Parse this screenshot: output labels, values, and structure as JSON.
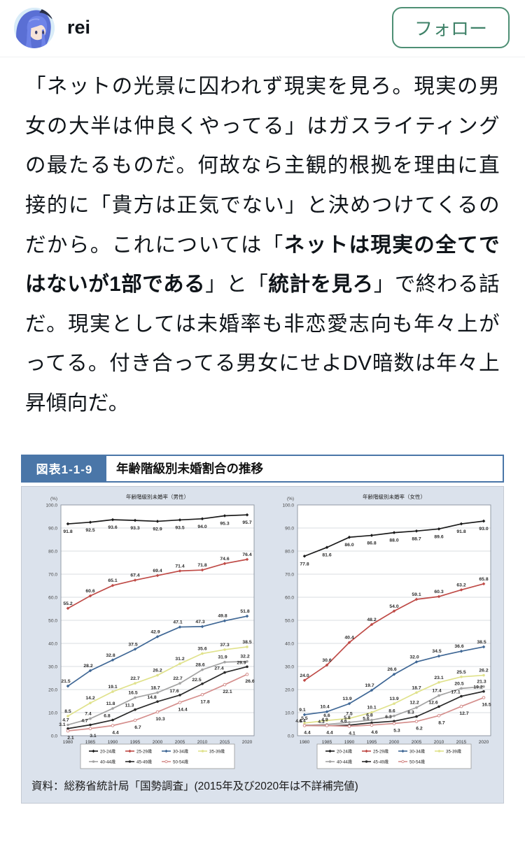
{
  "header": {
    "username": "rei",
    "follow_label": "フォロー",
    "accent_green": "#3f8268"
  },
  "post": {
    "segments": [
      {
        "text": "「ネットの光景に囚われず現実を見ろ。現実の男女の大半は仲良くやってる」はガスライティングの最たるものだ。何故なら主観的根拠を理由に直接的に「貴方は正気でない」と決めつけてくるのだから。これについては「",
        "bold": false
      },
      {
        "text": "ネットは現実の全てではないが1部である",
        "bold": true
      },
      {
        "text": "」と「",
        "bold": false
      },
      {
        "text": "統計を見ろ",
        "bold": true
      },
      {
        "text": "」で終わる話だ。現実としては未婚率も非恋愛志向も年々上がってる。付き合ってる男女にせよDV暗数は年々上昇傾向だ。",
        "bold": false
      }
    ]
  },
  "figure": {
    "label": "図表1-1-9",
    "title": "年齢階級別未婚割合の推移",
    "source": "資料：総務省統計局「国勢調査」(2015年及び2020年は不詳補完値)",
    "header_blue": "#4a76a8",
    "panel_bg": "#dbe2ec"
  },
  "chart_data": [
    {
      "type": "line",
      "title": "年齢階級別未婚率（男性）",
      "ylabel": "(%)",
      "ylim": [
        0,
        100
      ],
      "ytick_step": 10,
      "grid": true,
      "legend_position": "bottom",
      "categories": [
        "1980",
        "1985",
        "1990",
        "1995",
        "2000",
        "2005",
        "2010",
        "2015",
        "2020"
      ],
      "series": [
        {
          "name": "20-24歳",
          "color": "#1a1a1a",
          "values": [
            91.8,
            92.5,
            93.6,
            93.3,
            92.9,
            93.5,
            94.0,
            95.3,
            95.7
          ]
        },
        {
          "name": "25-29歳",
          "color": "#bf4b47",
          "values": [
            55.2,
            60.6,
            65.1,
            67.4,
            69.4,
            71.4,
            71.8,
            74.6,
            76.4
          ]
        },
        {
          "name": "30-34歳",
          "color": "#3f6795",
          "values": [
            21.5,
            28.2,
            32.8,
            37.5,
            42.9,
            47.1,
            47.3,
            49.8,
            51.8
          ]
        },
        {
          "name": "35-39歳",
          "color": "#e0e28c",
          "values": [
            8.5,
            14.2,
            19.1,
            22.7,
            26.2,
            31.2,
            35.6,
            37.3,
            38.5
          ]
        },
        {
          "name": "40-44歳",
          "color": "#a3a3a3",
          "values": [
            4.7,
            7.4,
            11.8,
            16.5,
            18.7,
            22.7,
            28.6,
            31.9,
            32.2
          ]
        },
        {
          "name": "45-49歳",
          "color": "#2b2b2b",
          "values": [
            3.1,
            4.7,
            6.8,
            11.3,
            14.8,
            17.6,
            22.5,
            27.4,
            29.9
          ]
        },
        {
          "name": "50-54歳",
          "color": "#d58f8d",
          "values": [
            2.1,
            3.1,
            4.4,
            6.7,
            10.3,
            14.4,
            17.8,
            22.1,
            26.6
          ]
        }
      ]
    },
    {
      "type": "line",
      "title": "年齢階級別未婚率（女性）",
      "ylabel": "(%)",
      "ylim": [
        0,
        100
      ],
      "ytick_step": 10,
      "grid": true,
      "legend_position": "bottom",
      "categories": [
        "1980",
        "1985",
        "1990",
        "1995",
        "2000",
        "2005",
        "2010",
        "2015",
        "2020"
      ],
      "series": [
        {
          "name": "20-24歳",
          "color": "#1a1a1a",
          "values": [
            77.8,
            81.6,
            86.0,
            86.8,
            88.0,
            88.7,
            89.6,
            91.8,
            93.0
          ]
        },
        {
          "name": "25-29歳",
          "color": "#bf4b47",
          "values": [
            24.0,
            30.6,
            40.4,
            48.2,
            54.0,
            59.1,
            60.3,
            63.2,
            65.8
          ]
        },
        {
          "name": "30-34歳",
          "color": "#3f6795",
          "values": [
            9.1,
            10.4,
            13.9,
            19.7,
            26.6,
            32.0,
            34.5,
            36.6,
            38.5
          ]
        },
        {
          "name": "35-39歳",
          "color": "#e0e28c",
          "values": [
            5.5,
            6.6,
            7.5,
            10.1,
            13.9,
            18.7,
            23.1,
            25.5,
            26.2
          ]
        },
        {
          "name": "40-44歳",
          "color": "#a3a3a3",
          "values": [
            4.4,
            4.9,
            5.8,
            6.8,
            8.6,
            12.2,
            17.4,
            20.5,
            21.3
          ]
        },
        {
          "name": "45-49歳",
          "color": "#2b2b2b",
          "values": [
            4.5,
            4.3,
            4.6,
            5.6,
            6.3,
            8.3,
            12.6,
            17.1,
            19.2
          ]
        },
        {
          "name": "50-54歳",
          "color": "#d58f8d",
          "values": [
            4.4,
            4.4,
            4.1,
            4.6,
            5.3,
            6.2,
            8.7,
            12.7,
            16.5
          ]
        }
      ]
    }
  ]
}
